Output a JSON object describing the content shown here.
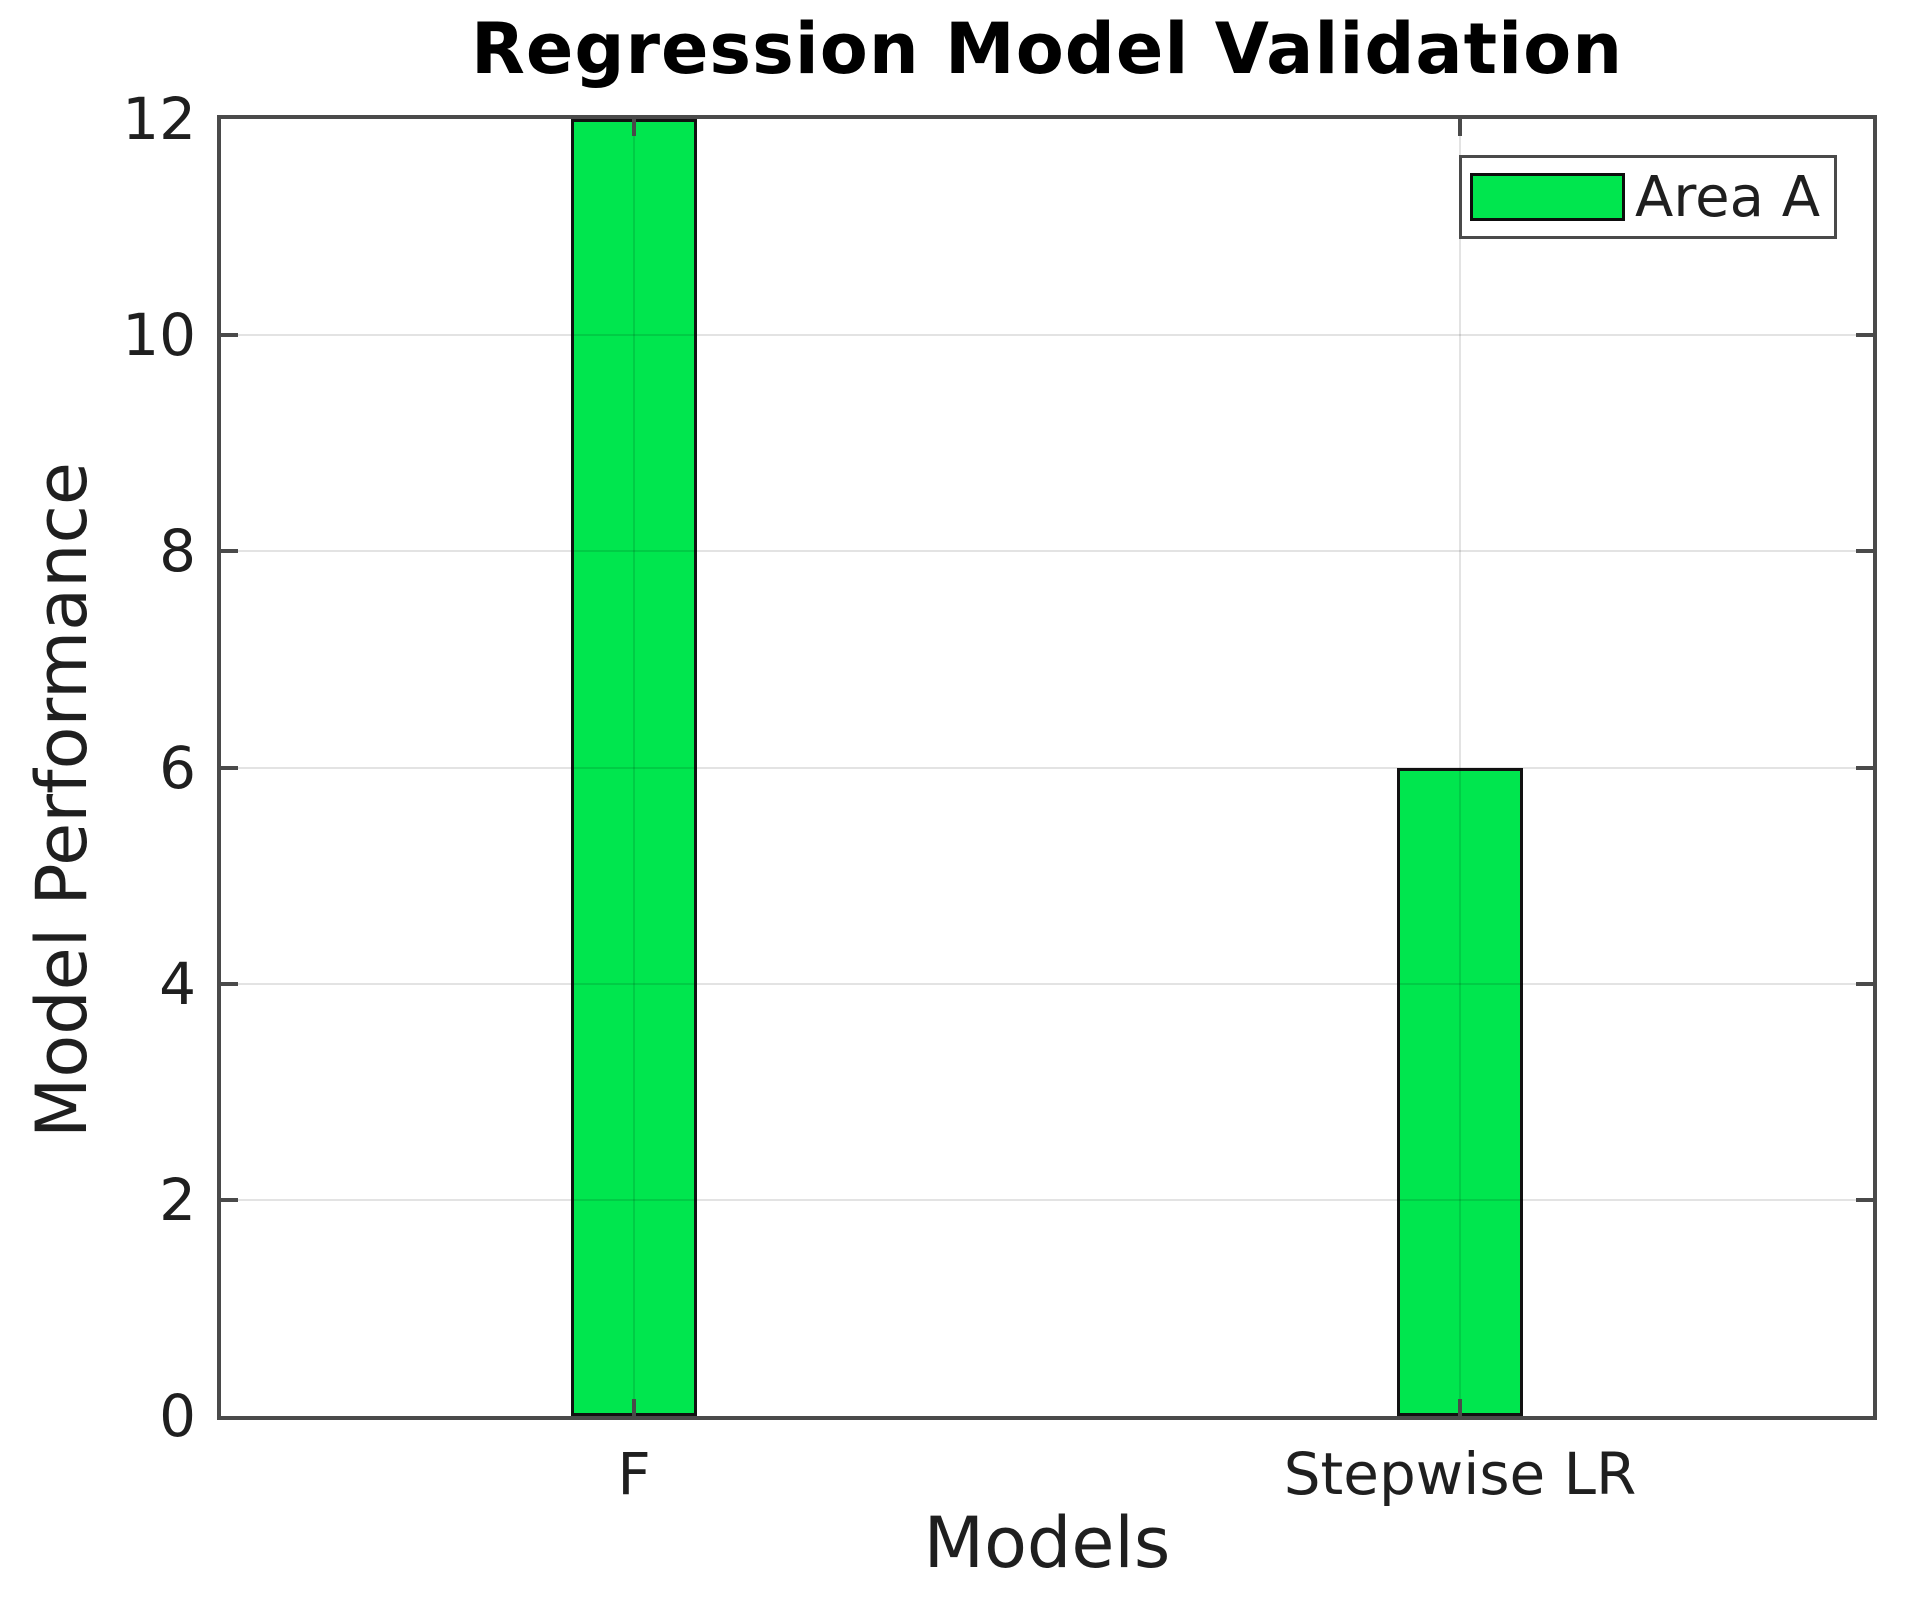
{
  "chart_data": {
    "type": "bar",
    "title": "Regression Model Validation",
    "xlabel": "Models",
    "ylabel": "Model Performance",
    "categories": [
      "F",
      "Stepwise LR"
    ],
    "series": [
      {
        "name": "Area A",
        "values": [
          12,
          6
        ]
      }
    ],
    "ylim": [
      0,
      12
    ],
    "yticks": [
      0,
      2,
      4,
      6,
      8,
      10,
      12
    ],
    "grid": true,
    "grid_on_top_of_bars": true,
    "legend_position": "top-right",
    "bar_color": "#00e64e",
    "bar_edge_color": "#111111",
    "bar_width_frac": 0.0765
  }
}
